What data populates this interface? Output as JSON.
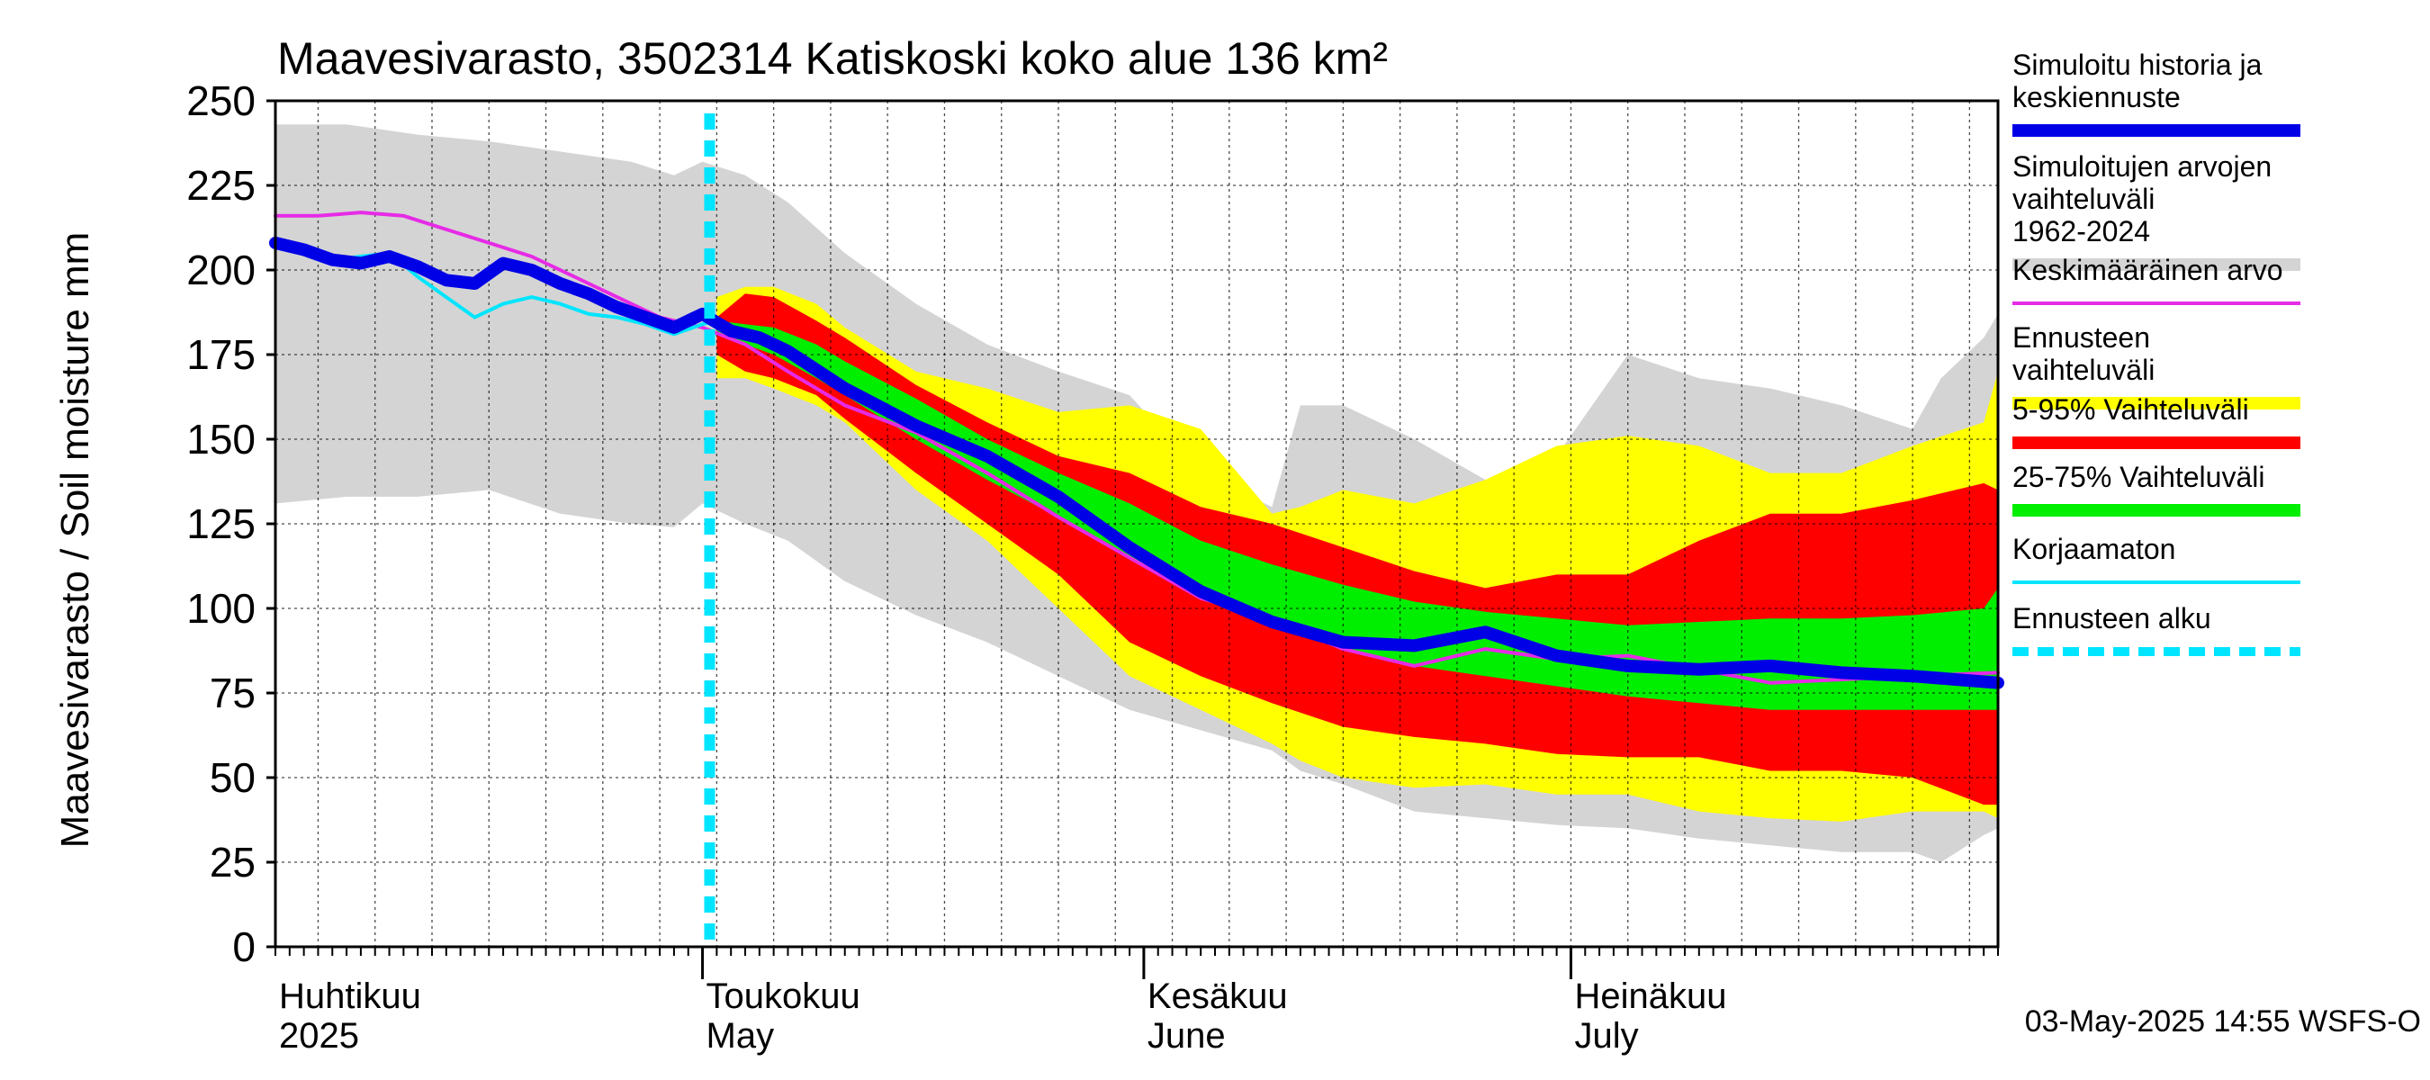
{
  "chart_data": {
    "type": "area",
    "title": "Maavesivarasto, 3502314 Katiskoski koko alue 136 km²",
    "ylabel": "Maavesivarasto / Soil moisture   mm",
    "ylim": [
      0,
      250
    ],
    "yticks": [
      0,
      25,
      50,
      75,
      100,
      125,
      150,
      175,
      200,
      225,
      250
    ],
    "x_unit": "days since 2025-04-01",
    "xlim": [
      0,
      121
    ],
    "grid": true,
    "forecast_start_day": 30.5,
    "months": [
      {
        "fi": "Huhtikuu",
        "en": "2025",
        "day": 0
      },
      {
        "fi": "Toukokuu",
        "en": "May",
        "day": 30
      },
      {
        "fi": "Kesäkuu",
        "en": "June",
        "day": 61
      },
      {
        "fi": "Heinäkuu",
        "en": "July",
        "day": 91
      }
    ],
    "footer": "03-May-2025 14:55 WSFS-O",
    "legend": [
      {
        "label": "Simuloitu historia ja keskiennuste",
        "color": "#0000e6",
        "style": "thick"
      },
      {
        "label": "Simuloitujen arvojen vaihteluväli 1962-2024",
        "color": "#d4d4d4",
        "style": "thick"
      },
      {
        "label": "Keskimääräinen arvo",
        "color": "#e62be6",
        "style": "thin"
      },
      {
        "label": "Ennusteen vaihteluväli",
        "color": "#ffff00",
        "style": "thick"
      },
      {
        "label": "5-95% Vaihteluväli",
        "color": "#ff0000",
        "style": "thick"
      },
      {
        "label": "25-75% Vaihteluväli",
        "color": "#00ee00",
        "style": "thick"
      },
      {
        "label": "Korjaamaton",
        "color": "#00e5ff",
        "style": "thin"
      },
      {
        "label": "Ennusteen alku",
        "color": "#00e5ff",
        "style": "dashed"
      }
    ],
    "series": [
      {
        "name": "Simuloitujen arvojen vaihteluväli 1962-2024",
        "kind": "band",
        "color": "#d4d4d4",
        "x": [
          0,
          5,
          10,
          15,
          20,
          25,
          28,
          30,
          33,
          36,
          40,
          45,
          50,
          55,
          60,
          65,
          70,
          72,
          75,
          80,
          85,
          90,
          95,
          100,
          105,
          110,
          115,
          117,
          120,
          121
        ],
        "upper": [
          243,
          243,
          240,
          238,
          235,
          232,
          228,
          232,
          228,
          220,
          205,
          190,
          178,
          170,
          163,
          140,
          130,
          160,
          160,
          150,
          138,
          145,
          175,
          168,
          165,
          160,
          153,
          168,
          180,
          187
        ],
        "lower": [
          131,
          133,
          133,
          135,
          128,
          125,
          124,
          131,
          125,
          120,
          108,
          98,
          90,
          80,
          70,
          64,
          58,
          52,
          48,
          40,
          38,
          36,
          35,
          32,
          30,
          28,
          28,
          25,
          33,
          35
        ]
      },
      {
        "name": "Ennusteen vaihteluväli",
        "kind": "band",
        "color": "#ffff00",
        "x": [
          31,
          33,
          35,
          38,
          40,
          45,
          50,
          55,
          60,
          65,
          70,
          72,
          75,
          80,
          85,
          90,
          95,
          100,
          105,
          110,
          115,
          120,
          121
        ],
        "upper": [
          192,
          195,
          195,
          190,
          183,
          170,
          165,
          158,
          160,
          153,
          128,
          130,
          135,
          131,
          138,
          148,
          151,
          148,
          140,
          140,
          148,
          155,
          170
        ],
        "lower": [
          168,
          168,
          165,
          160,
          155,
          135,
          120,
          100,
          80,
          70,
          60,
          55,
          50,
          47,
          48,
          45,
          45,
          40,
          38,
          37,
          40,
          40,
          38
        ]
      },
      {
        "name": "5-95% Vaihteluväli",
        "kind": "band",
        "color": "#ff0000",
        "x": [
          31,
          33,
          35,
          38,
          40,
          45,
          50,
          55,
          60,
          65,
          70,
          75,
          80,
          85,
          90,
          95,
          100,
          105,
          110,
          115,
          120,
          121
        ],
        "upper": [
          186,
          193,
          192,
          185,
          180,
          166,
          155,
          145,
          140,
          130,
          125,
          118,
          111,
          106,
          110,
          110,
          120,
          128,
          128,
          132,
          137,
          135
        ],
        "lower": [
          175,
          170,
          168,
          163,
          156,
          140,
          125,
          110,
          90,
          80,
          72,
          65,
          62,
          60,
          57,
          56,
          56,
          52,
          52,
          50,
          42,
          42
        ]
      },
      {
        "name": "25-75% Vaihteluväli",
        "kind": "band",
        "color": "#00ee00",
        "x": [
          31,
          33,
          35,
          38,
          40,
          45,
          50,
          55,
          60,
          65,
          70,
          75,
          80,
          85,
          90,
          95,
          100,
          105,
          110,
          115,
          120,
          121
        ],
        "upper": [
          185,
          184,
          183,
          178,
          173,
          162,
          150,
          140,
          131,
          120,
          113,
          107,
          102,
          99,
          97,
          95,
          96,
          97,
          97,
          98,
          100,
          106
        ],
        "lower": [
          182,
          178,
          175,
          168,
          163,
          150,
          138,
          127,
          115,
          103,
          95,
          88,
          83,
          80,
          77,
          74,
          72,
          70,
          70,
          70,
          70,
          70
        ]
      },
      {
        "name": "Keskimääräinen arvo",
        "kind": "line",
        "color": "#e62be6",
        "x": [
          0,
          3,
          6,
          9,
          12,
          15,
          18,
          21,
          24,
          27,
          30,
          33,
          36,
          40,
          45,
          50,
          55,
          60,
          65,
          70,
          75,
          80,
          85,
          90,
          95,
          100,
          105,
          110,
          115,
          121
        ],
        "values": [
          216,
          216,
          217,
          216,
          212,
          208,
          204,
          198,
          192,
          186,
          183,
          178,
          170,
          160,
          152,
          140,
          127,
          115,
          103,
          97,
          88,
          83,
          88,
          85,
          86,
          82,
          78,
          79,
          80,
          81
        ]
      },
      {
        "name": "Korjaamaton",
        "kind": "line",
        "color": "#00e5ff",
        "x": [
          0,
          2,
          4,
          6,
          8,
          10,
          12,
          14,
          16,
          18,
          20,
          22,
          24,
          26,
          28,
          30,
          31
        ],
        "values": [
          207,
          205,
          203,
          204,
          205,
          198,
          192,
          186,
          190,
          192,
          190,
          187,
          186,
          184,
          181,
          184,
          185
        ]
      },
      {
        "name": "Simuloitu historia ja keskiennuste",
        "kind": "line",
        "color": "#0000e6",
        "x": [
          0,
          2,
          4,
          6,
          8,
          10,
          12,
          14,
          16,
          18,
          20,
          22,
          24,
          26,
          28,
          30,
          32,
          34,
          36,
          40,
          45,
          50,
          55,
          60,
          65,
          70,
          75,
          80,
          85,
          90,
          95,
          100,
          105,
          110,
          115,
          121
        ],
        "values": [
          208,
          206,
          203,
          202,
          204,
          201,
          197,
          196,
          202,
          200,
          196,
          193,
          189,
          186,
          183,
          187,
          182,
          180,
          176,
          165,
          154,
          145,
          133,
          118,
          105,
          96,
          90,
          89,
          93,
          86,
          83,
          82,
          83,
          81,
          80,
          78
        ]
      }
    ]
  }
}
